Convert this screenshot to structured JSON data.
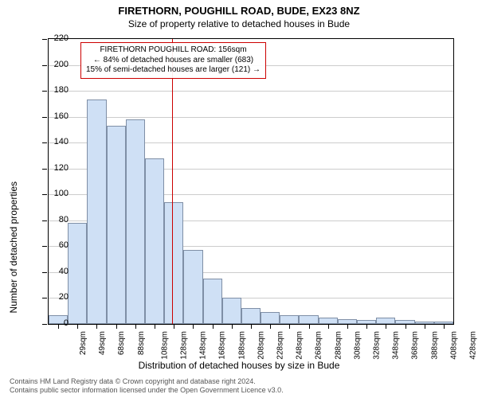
{
  "header": {
    "title": "FIRETHORN, POUGHILL ROAD, BUDE, EX23 8NZ",
    "subtitle": "Size of property relative to detached houses in Bude"
  },
  "chart": {
    "type": "histogram",
    "ylim": [
      0,
      220
    ],
    "ytick_step": 20,
    "ylabel": "Number of detached properties",
    "xlabel": "Distribution of detached houses by size in Bude",
    "categories": [
      "29sqm",
      "49sqm",
      "68sqm",
      "88sqm",
      "108sqm",
      "128sqm",
      "148sqm",
      "168sqm",
      "188sqm",
      "208sqm",
      "228sqm",
      "248sqm",
      "268sqm",
      "288sqm",
      "308sqm",
      "328sqm",
      "348sqm",
      "368sqm",
      "388sqm",
      "408sqm",
      "428sqm"
    ],
    "values": [
      7,
      78,
      173,
      153,
      158,
      128,
      94,
      57,
      35,
      20,
      12,
      9,
      7,
      7,
      5,
      4,
      3,
      5,
      3,
      2,
      2
    ],
    "bar_fill": "#cfe0f5",
    "bar_border": "#7f8fa6",
    "grid_color": "#cccccc",
    "background_color": "#ffffff",
    "marker": {
      "position_index": 6.4,
      "color": "#cc0000"
    },
    "annotation": {
      "line1": "FIRETHORN POUGHILL ROAD: 156sqm",
      "line2": "← 84% of detached houses are smaller (683)",
      "line3": "15% of semi-detached houses are larger (121) →",
      "border_color": "#cc0000"
    }
  },
  "footer": {
    "line1": "Contains HM Land Registry data © Crown copyright and database right 2024.",
    "line2": "Contains public sector information licensed under the Open Government Licence v3.0."
  }
}
